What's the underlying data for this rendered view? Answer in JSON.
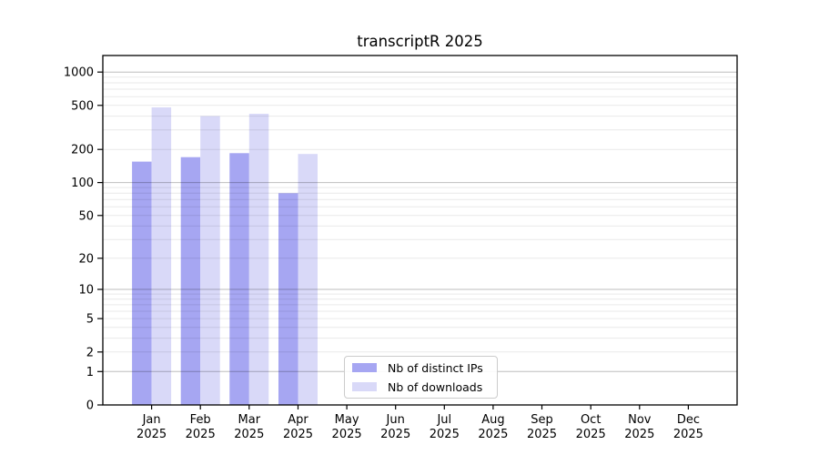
{
  "figure": {
    "background": "#ffffff"
  },
  "chart_data": {
    "type": "bar",
    "title": "transcriptR 2025",
    "categories": [
      "Jan 2025",
      "Feb 2025",
      "Mar 2025",
      "Apr 2025",
      "May 2025",
      "Jun 2025",
      "Jul 2025",
      "Aug 2025",
      "Sep 2025",
      "Oct 2025",
      "Nov 2025",
      "Dec 2025"
    ],
    "series": [
      {
        "name": "Nb of distinct IPs",
        "color": "#a6a6f2",
        "values": [
          155,
          170,
          185,
          80,
          0,
          0,
          0,
          0,
          0,
          0,
          0,
          0
        ]
      },
      {
        "name": "Nb of downloads",
        "color": "#d9d9f8",
        "values": [
          480,
          400,
          420,
          182,
          0,
          0,
          0,
          0,
          0,
          0,
          0,
          0
        ]
      }
    ],
    "y_scale": "log1p",
    "y_ticks": [
      0,
      1,
      2,
      5,
      10,
      20,
      50,
      100,
      200,
      500,
      1000
    ],
    "ylim": [
      0,
      1410
    ],
    "xlabel": "",
    "ylabel": "",
    "grid": "both",
    "legend_position": "inside-lower-center"
  },
  "style": {
    "major_grid_color": "rgba(0,0,0,0.26)",
    "minor_grid_color": "rgba(0,0,0,0.085)",
    "axis_color": "#000000",
    "tick_label_color": "#000000"
  }
}
